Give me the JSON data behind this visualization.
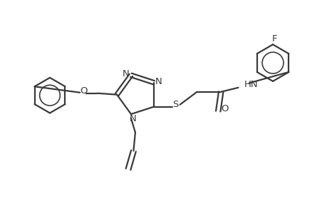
{
  "background_color": "#ffffff",
  "line_color": "#3a3a3a",
  "line_width": 1.6,
  "font_size": 9.5,
  "figsize": [
    4.6,
    3.0
  ],
  "dpi": 100,
  "xlim": [
    0,
    9.2
  ],
  "ylim": [
    0,
    6.0
  ]
}
